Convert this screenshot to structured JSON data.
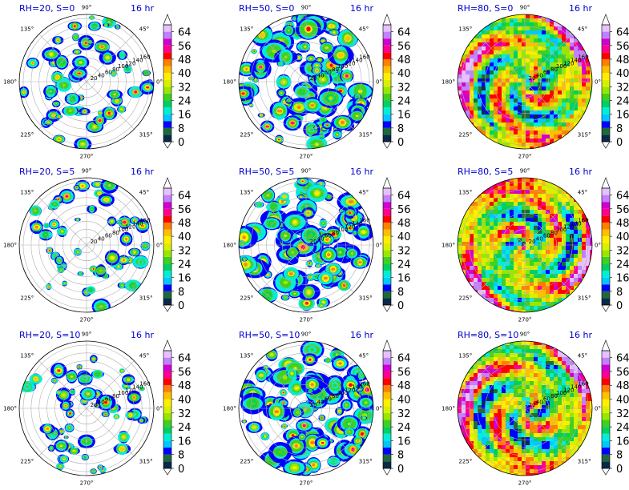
{
  "figure": {
    "time_label": "16 hr"
  },
  "chart_data": [
    {
      "type": "polar-contour",
      "title": "RH=20, S=0",
      "rh": 20,
      "s": 0,
      "time": "16 hr",
      "coverage": "sparse",
      "angle_ticks": [
        "0°",
        "45°",
        "90°",
        "135°",
        "180°",
        "225°",
        "270°",
        "315°"
      ],
      "radial_ticks": [
        20,
        40,
        60,
        80,
        100,
        120,
        140,
        160
      ],
      "colorbar": {
        "ticks": [
          0,
          8,
          16,
          24,
          32,
          40,
          48,
          56,
          64
        ],
        "range": [
          0,
          68
        ],
        "extend": "both"
      }
    },
    {
      "type": "polar-contour",
      "title": "RH=50, S=0",
      "rh": 50,
      "s": 0,
      "time": "16 hr",
      "coverage": "medium",
      "angle_ticks": [
        "0°",
        "45°",
        "90°",
        "135°",
        "180°",
        "225°",
        "270°",
        "315°"
      ],
      "radial_ticks": [
        20,
        40,
        60,
        80,
        100,
        120,
        140,
        160
      ],
      "colorbar": {
        "ticks": [
          0,
          8,
          16,
          24,
          32,
          40,
          48,
          56,
          64
        ],
        "range": [
          0,
          68
        ],
        "extend": "both"
      }
    },
    {
      "type": "polar-contour",
      "title": "RH=80, S=0",
      "rh": 80,
      "s": 0,
      "time": "16 hr",
      "coverage": "full",
      "angle_ticks": [
        "0°",
        "45°",
        "90°",
        "135°",
        "180°",
        "225°",
        "270°",
        "315°"
      ],
      "radial_ticks": [
        20,
        40,
        60,
        80,
        100,
        120,
        140,
        160
      ],
      "colorbar": {
        "ticks": [
          0,
          8,
          16,
          24,
          32,
          40,
          48,
          56,
          64
        ],
        "range": [
          0,
          68
        ],
        "extend": "both"
      }
    },
    {
      "type": "polar-contour",
      "title": "RH=20, S=5",
      "rh": 20,
      "s": 5,
      "time": "16 hr",
      "coverage": "sparse",
      "angle_ticks": [
        "0°",
        "45°",
        "90°",
        "135°",
        "180°",
        "225°",
        "270°",
        "315°"
      ],
      "radial_ticks": [
        20,
        40,
        60,
        80,
        100,
        120,
        140,
        160
      ],
      "colorbar": {
        "ticks": [
          0,
          8,
          16,
          24,
          32,
          40,
          48,
          56,
          64
        ],
        "range": [
          0,
          68
        ],
        "extend": "both"
      }
    },
    {
      "type": "polar-contour",
      "title": "RH=50, S=5",
      "rh": 50,
      "s": 5,
      "time": "16 hr",
      "coverage": "medium",
      "angle_ticks": [
        "0°",
        "45°",
        "90°",
        "135°",
        "180°",
        "225°",
        "270°",
        "315°"
      ],
      "radial_ticks": [
        20,
        40,
        60,
        80,
        100,
        120,
        140,
        160
      ],
      "colorbar": {
        "ticks": [
          0,
          8,
          16,
          24,
          32,
          40,
          48,
          56,
          64
        ],
        "range": [
          0,
          68
        ],
        "extend": "both"
      }
    },
    {
      "type": "polar-contour",
      "title": "RH=80, S=5",
      "rh": 80,
      "s": 5,
      "time": "16 hr",
      "coverage": "full",
      "angle_ticks": [
        "0°",
        "45°",
        "90°",
        "135°",
        "180°",
        "225°",
        "270°",
        "315°"
      ],
      "radial_ticks": [
        20,
        40,
        60,
        80,
        100,
        120,
        140,
        160
      ],
      "colorbar": {
        "ticks": [
          0,
          8,
          16,
          24,
          32,
          40,
          48,
          56,
          64
        ],
        "range": [
          0,
          68
        ],
        "extend": "both"
      }
    },
    {
      "type": "polar-contour",
      "title": "RH=20, S=10",
      "rh": 20,
      "s": 10,
      "time": "16 hr",
      "coverage": "sparse",
      "angle_ticks": [
        "0°",
        "45°",
        "90°",
        "135°",
        "180°",
        "225°",
        "270°",
        "315°"
      ],
      "radial_ticks": [
        20,
        40,
        60,
        80,
        100,
        120,
        140,
        160
      ],
      "colorbar": {
        "ticks": [
          0,
          8,
          16,
          24,
          32,
          40,
          48,
          56,
          64
        ],
        "range": [
          0,
          68
        ],
        "extend": "both"
      }
    },
    {
      "type": "polar-contour",
      "title": "RH=50, S=10",
      "rh": 50,
      "s": 10,
      "time": "16 hr",
      "coverage": "medium",
      "angle_ticks": [
        "0°",
        "45°",
        "90°",
        "135°",
        "180°",
        "225°",
        "270°",
        "315°"
      ],
      "radial_ticks": [
        20,
        40,
        60,
        80,
        100,
        120,
        140,
        160
      ],
      "colorbar": {
        "ticks": [
          0,
          8,
          16,
          24,
          32,
          40,
          48,
          56,
          64
        ],
        "range": [
          0,
          68
        ],
        "extend": "both"
      }
    },
    {
      "type": "polar-contour",
      "title": "RH=80, S=10",
      "rh": 80,
      "s": 10,
      "time": "16 hr",
      "coverage": "full",
      "angle_ticks": [
        "0°",
        "45°",
        "90°",
        "135°",
        "180°",
        "225°",
        "270°",
        "315°"
      ],
      "radial_ticks": [
        20,
        40,
        60,
        80,
        100,
        120,
        140,
        160
      ],
      "colorbar": {
        "ticks": [
          0,
          8,
          16,
          24,
          32,
          40,
          48,
          56,
          64
        ],
        "range": [
          0,
          68
        ],
        "extend": "both"
      }
    }
  ],
  "colormap": {
    "levels": [
      0,
      4,
      8,
      12,
      16,
      20,
      24,
      28,
      32,
      36,
      40,
      44,
      48,
      52,
      56,
      60,
      64,
      68
    ],
    "colors": [
      "#0a2a4a",
      "#1e6a3a",
      "#0000ff",
      "#00c8ff",
      "#00eed8",
      "#00d060",
      "#40d020",
      "#9ae600",
      "#d8f000",
      "#ffee00",
      "#ffc000",
      "#ff8000",
      "#ff0000",
      "#ff0090",
      "#d000d0",
      "#c080ff",
      "#e8c0ff"
    ],
    "under": "#ffffff",
    "over": "#ffffff"
  }
}
